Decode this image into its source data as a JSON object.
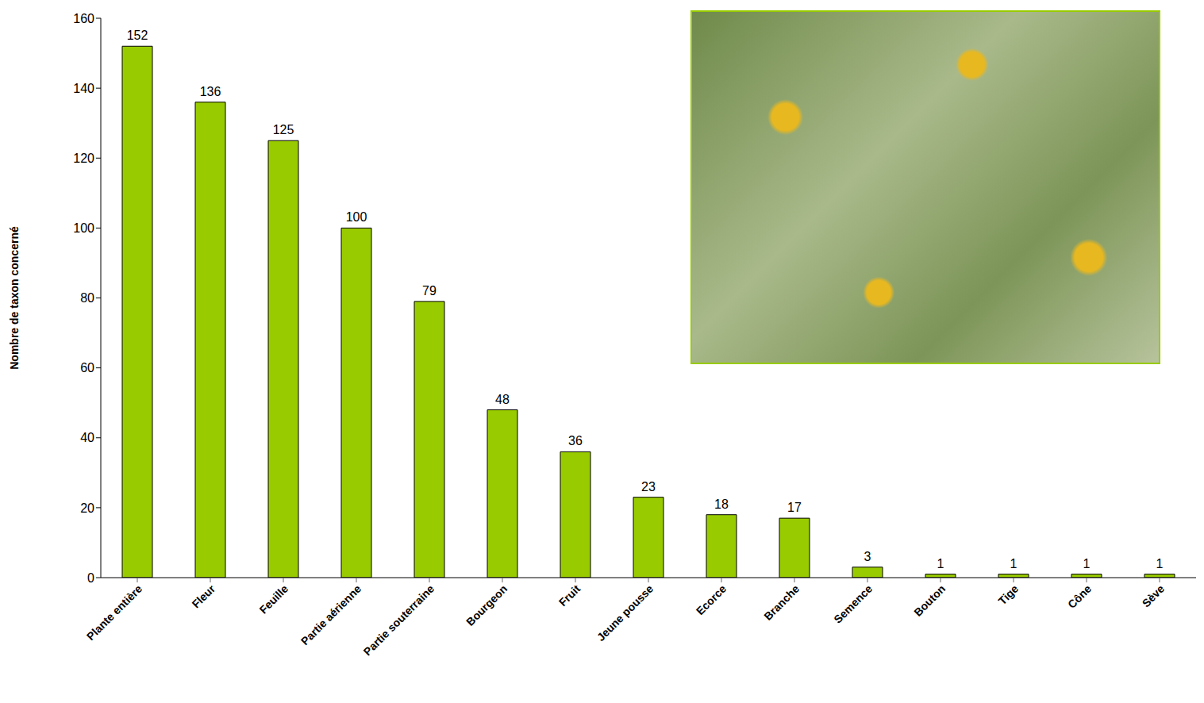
{
  "chart_data": {
    "type": "bar",
    "categories": [
      "Plante entière",
      "Fleur",
      "Feuille",
      "Partie aérienne",
      "Partie souterraine",
      "Bourgeon",
      "Fruit",
      "Jeune pousse",
      "Ecorce",
      "Branche",
      "Semence",
      "Bouton",
      "Tige",
      "Cône",
      "Sève"
    ],
    "values": [
      152,
      136,
      125,
      100,
      79,
      48,
      36,
      23,
      18,
      17,
      3,
      1,
      1,
      1,
      1
    ],
    "color": "#99cc00",
    "y_label": "Nombre de taxon concerné",
    "ylim": [
      0,
      160
    ],
    "yticks": [
      0,
      20,
      40,
      60,
      80,
      100,
      120,
      140,
      160
    ],
    "grid": false,
    "data_labels": true
  }
}
